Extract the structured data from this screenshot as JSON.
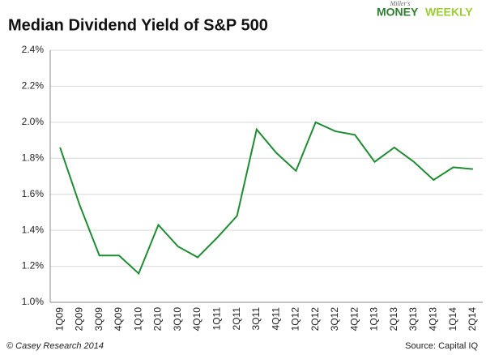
{
  "chart_data": {
    "type": "line",
    "title": "Median Dividend Yield of S&P 500",
    "logo": {
      "tagline": "Miller's",
      "money": "MONEY",
      "weekly": "WEEKLY"
    },
    "credit": "© Casey Research 2014",
    "source": "Source: Capital IQ",
    "categories": [
      "1Q09",
      "2Q09",
      "3Q09",
      "4Q09",
      "1Q10",
      "2Q10",
      "3Q10",
      "4Q10",
      "1Q11",
      "2Q11",
      "3Q11",
      "4Q11",
      "1Q12",
      "2Q12",
      "3Q12",
      "4Q12",
      "1Q13",
      "2Q13",
      "3Q13",
      "4Q13",
      "1Q14",
      "2Q14"
    ],
    "series": [
      {
        "name": "Median Dividend Yield",
        "color": "#1e8c32",
        "values": [
          1.86,
          1.54,
          1.26,
          1.26,
          1.16,
          1.43,
          1.31,
          1.25,
          1.36,
          1.48,
          1.96,
          1.83,
          1.73,
          2.0,
          1.95,
          1.93,
          1.78,
          1.86,
          1.78,
          1.68,
          1.75,
          1.74
        ]
      }
    ],
    "ylim": [
      1.0,
      2.4
    ],
    "yticks": [
      {
        "value": 1.0,
        "label": "1.0%"
      },
      {
        "value": 1.2,
        "label": "1.2%"
      },
      {
        "value": 1.4,
        "label": "1.4%"
      },
      {
        "value": 1.6,
        "label": "1.6%"
      },
      {
        "value": 1.8,
        "label": "1.8%"
      },
      {
        "value": 2.0,
        "label": "2.0%"
      },
      {
        "value": 2.2,
        "label": "2.2%"
      },
      {
        "value": 2.4,
        "label": "2.4%"
      }
    ],
    "grid": true
  }
}
